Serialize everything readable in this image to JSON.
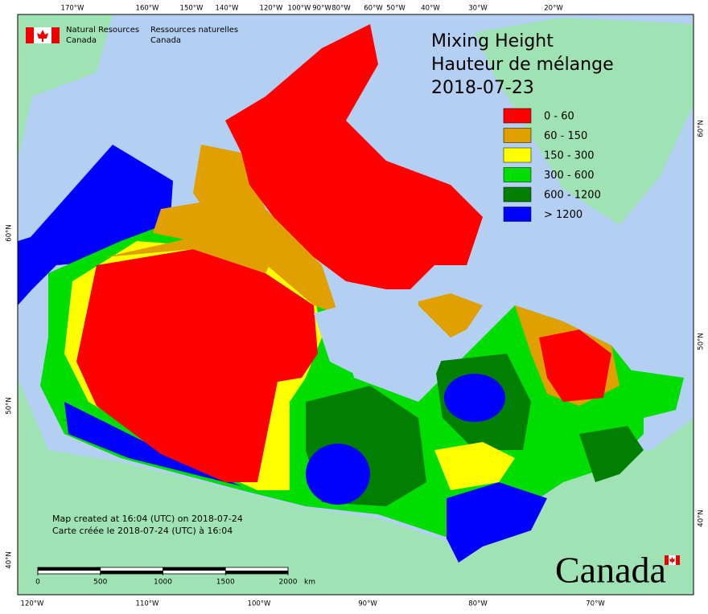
{
  "header": {
    "org_en": [
      "Natural Resources",
      "Canada"
    ],
    "org_fr": [
      "Ressources naturelles",
      "Canada"
    ]
  },
  "title": [
    "Mixing Height",
    "Hauteur de mélange",
    "2018-07-23"
  ],
  "legend": [
    {
      "label": "0 - 60",
      "color": "#ff0000"
    },
    {
      "label": "60 - 150",
      "color": "#e0a000"
    },
    {
      "label": "150 - 300",
      "color": "#ffff00"
    },
    {
      "label": "300 - 600",
      "color": "#00dd00"
    },
    {
      "label": "600 - 1200",
      "color": "#007f00"
    },
    {
      "label": "> 1200",
      "color": "#0000ff"
    }
  ],
  "notes": [
    "Map created at 16:04 (UTC) on 2018-07-24",
    "Carte créée le 2018-07-24 (UTC) à 16:04"
  ],
  "scale_bar": {
    "ticks": [
      0,
      500,
      1000,
      1500,
      2000
    ],
    "unit": "km"
  },
  "graticule": {
    "top": [
      "170°W",
      "160°W",
      "150°W",
      "140°W",
      "120°W",
      "100°W",
      "90°W",
      "80°W",
      "60°W",
      "50°W",
      "40°W",
      "30°W",
      "20°W"
    ],
    "bottom": [
      "120°W",
      "110°W",
      "100°W",
      "90°W",
      "80°W",
      "70°W"
    ],
    "left": [
      "60°N",
      "50°N",
      "40°N"
    ],
    "right": [
      "60°N",
      "50°N",
      "40°N"
    ]
  },
  "wordmark": "Canada"
}
